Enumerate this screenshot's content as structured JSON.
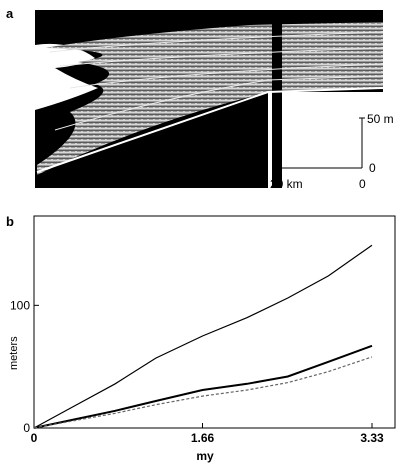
{
  "figure": {
    "panel_a": {
      "letter": "a",
      "scale_bar_vertical": {
        "top_label": "50 m",
        "bottom_label": "0"
      },
      "scale_bar_horizontal": {
        "left_label": "20 km",
        "right_label": "0"
      }
    },
    "panel_b": {
      "letter": "b"
    }
  },
  "chart_data": {
    "type": "line",
    "title": "",
    "xlabel": "my",
    "ylabel": "meters",
    "xlim": [
      0,
      3.33
    ],
    "ylim": [
      0,
      150
    ],
    "x_ticks": [
      0,
      1.66,
      3.33
    ],
    "x_tick_labels": [
      "0",
      "1.66",
      "3.33"
    ],
    "y_ticks": [
      0,
      100
    ],
    "y_tick_labels": [
      "0",
      "100"
    ],
    "grid": false,
    "legend": "none",
    "series": [
      {
        "x": [
          0,
          0.4,
          0.8,
          1.2,
          1.66,
          2.1,
          2.5,
          2.9,
          3.33
        ],
        "values": [
          0,
          18,
          36,
          57,
          75,
          90,
          106,
          124,
          149
        ],
        "color": "#000000",
        "dashed": false
      },
      {
        "x": [
          0,
          0.4,
          0.8,
          1.2,
          1.66,
          2.1,
          2.5,
          2.9,
          3.33
        ],
        "values": [
          0,
          7,
          14,
          22,
          31,
          36,
          42,
          54,
          67
        ],
        "color": "#000000",
        "dashed": false
      },
      {
        "x": [
          0,
          0.4,
          0.8,
          1.2,
          1.66,
          2.1,
          2.5,
          2.9,
          3.33
        ],
        "values": [
          0,
          6,
          12,
          19,
          26,
          31,
          37,
          46,
          58
        ],
        "color": "#666666",
        "dashed": true
      }
    ]
  }
}
